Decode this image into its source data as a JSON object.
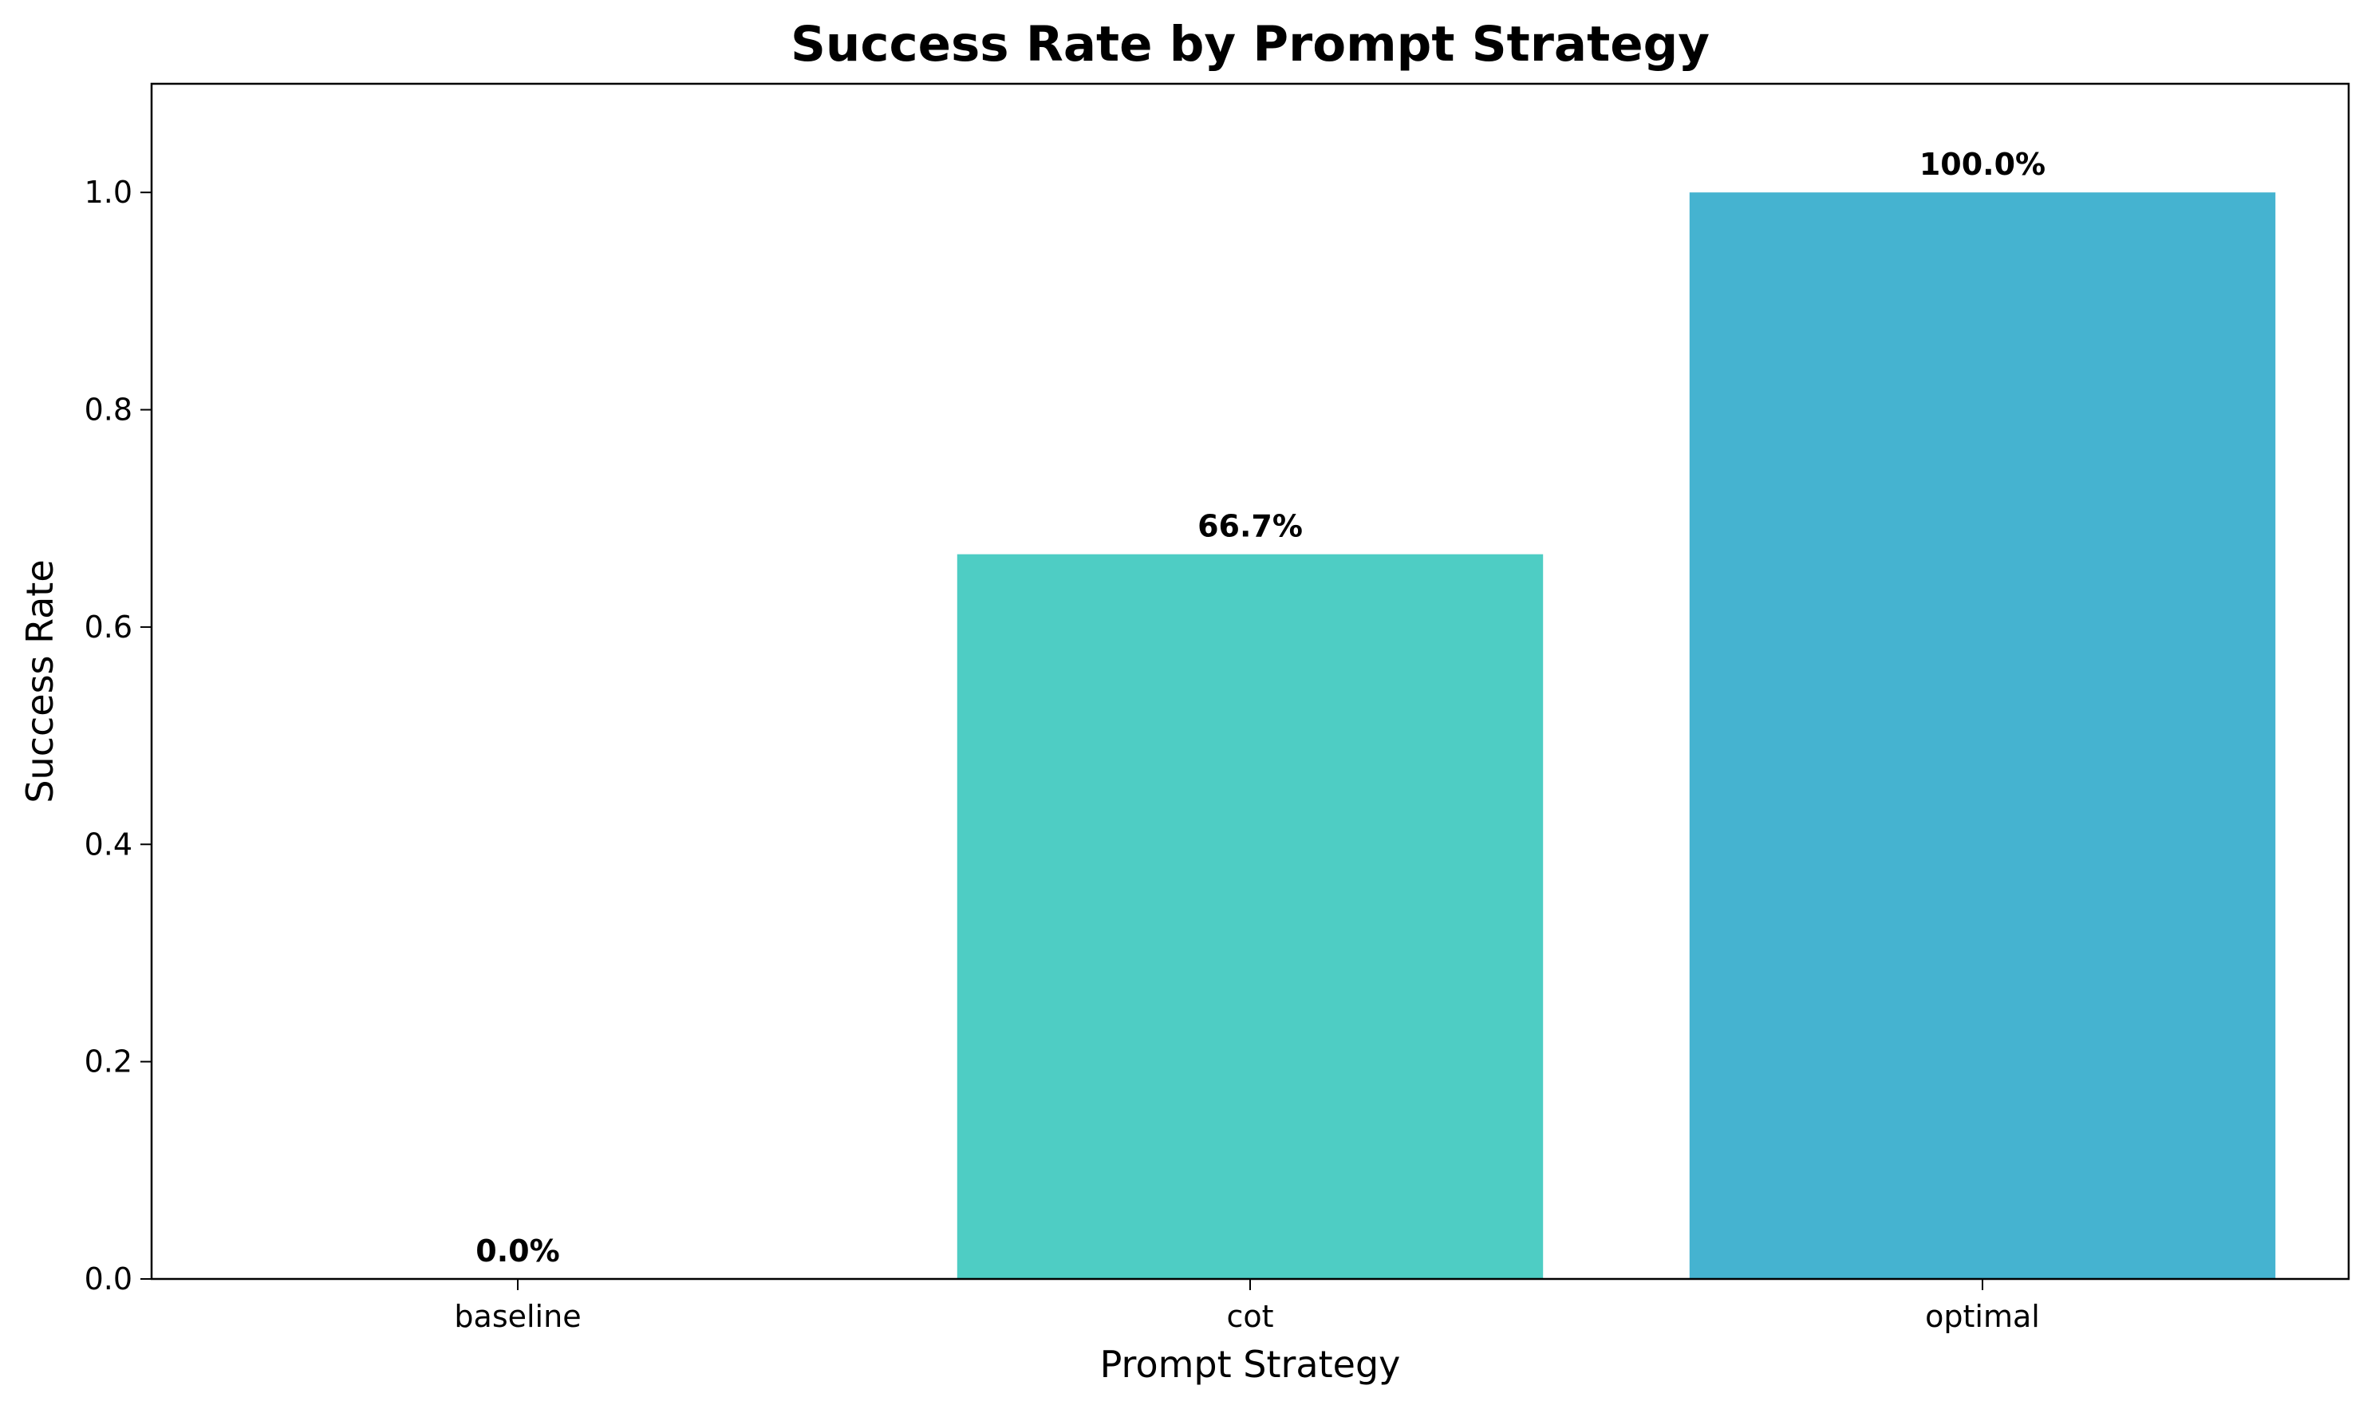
{
  "chart_data": {
    "type": "bar",
    "title": "Success Rate by Prompt Strategy",
    "xlabel": "Prompt Strategy",
    "ylabel": "Success Rate",
    "categories": [
      "baseline",
      "cot",
      "optimal"
    ],
    "values": [
      0.0,
      0.667,
      1.0
    ],
    "value_labels": [
      "0.0%",
      "66.7%",
      "100.0%"
    ],
    "colors": [
      "#FF6B6B",
      "#4ECDC4",
      "#45B3D0"
    ],
    "ylim": [
      0,
      1.1
    ],
    "yticks": [
      0.0,
      0.2,
      0.4,
      0.6,
      0.8,
      1.0
    ],
    "ytick_labels": [
      "0.0",
      "0.2",
      "0.4",
      "0.6",
      "0.8",
      "1.0"
    ],
    "grid": false,
    "legend": "none"
  }
}
